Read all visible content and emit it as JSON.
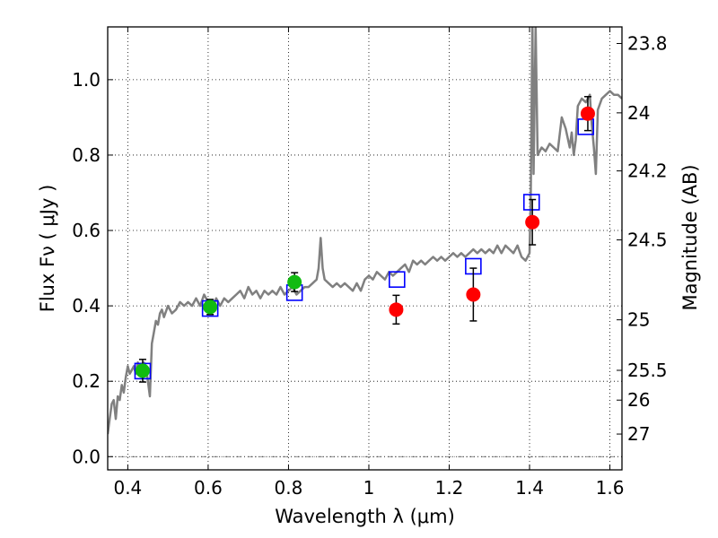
{
  "chart_data": {
    "type": "scatter",
    "xlabel": "Wavelength  λ (μm)",
    "ylabel_left": "Flux  Fν  ( μJy )",
    "ylabel_right": "Magnitude (AB)",
    "xlim": [
      0.35,
      1.63
    ],
    "ylim": [
      -0.035,
      1.14
    ],
    "grid": true,
    "x_ticks": [
      0.4,
      0.6,
      0.8,
      1.0,
      1.2,
      1.4,
      1.6
    ],
    "x_tick_labels": [
      "0.4",
      "0.6",
      "0.8",
      "1",
      "1.2",
      "1.4",
      "1.6"
    ],
    "y_ticks": [
      0.0,
      0.2,
      0.4,
      0.6,
      0.8,
      1.0
    ],
    "y_tick_labels": [
      "0.0",
      "0.2",
      "0.4",
      "0.6",
      "0.8",
      "1.0"
    ],
    "right_ticks": [
      {
        "flux": 1.096,
        "label": "23.8"
      },
      {
        "flux": 0.912,
        "label": "24"
      },
      {
        "flux": 0.758,
        "label": "24.2"
      },
      {
        "flux": 0.575,
        "label": "24.5"
      },
      {
        "flux": 0.363,
        "label": "25"
      },
      {
        "flux": 0.229,
        "label": "25.5"
      },
      {
        "flux": 0.15,
        "label": "26"
      },
      {
        "flux": 0.06,
        "label": "27"
      }
    ],
    "colors": {
      "model": "#808080",
      "green": "#11bb11",
      "red": "#ff0000",
      "box": "#0000ff",
      "errorbar": "#000000"
    },
    "series": [
      {
        "kind": "model_spectrum",
        "points": [
          [
            0.35,
            0.06
          ],
          [
            0.355,
            0.1
          ],
          [
            0.36,
            0.14
          ],
          [
            0.365,
            0.15
          ],
          [
            0.37,
            0.1
          ],
          [
            0.375,
            0.16
          ],
          [
            0.38,
            0.15
          ],
          [
            0.385,
            0.19
          ],
          [
            0.39,
            0.17
          ],
          [
            0.395,
            0.21
          ],
          [
            0.4,
            0.24
          ],
          [
            0.405,
            0.22
          ],
          [
            0.41,
            0.23
          ],
          [
            0.415,
            0.24
          ],
          [
            0.42,
            0.22
          ],
          [
            0.425,
            0.25
          ],
          [
            0.43,
            0.23
          ],
          [
            0.435,
            0.22
          ],
          [
            0.44,
            0.25
          ],
          [
            0.445,
            0.24
          ],
          [
            0.45,
            0.2
          ],
          [
            0.455,
            0.16
          ],
          [
            0.46,
            0.3
          ],
          [
            0.465,
            0.33
          ],
          [
            0.47,
            0.36
          ],
          [
            0.475,
            0.35
          ],
          [
            0.48,
            0.38
          ],
          [
            0.485,
            0.39
          ],
          [
            0.49,
            0.37
          ],
          [
            0.5,
            0.4
          ],
          [
            0.51,
            0.38
          ],
          [
            0.52,
            0.39
          ],
          [
            0.53,
            0.41
          ],
          [
            0.54,
            0.4
          ],
          [
            0.55,
            0.41
          ],
          [
            0.56,
            0.4
          ],
          [
            0.57,
            0.42
          ],
          [
            0.58,
            0.4
          ],
          [
            0.59,
            0.43
          ],
          [
            0.6,
            0.41
          ],
          [
            0.61,
            0.39
          ],
          [
            0.62,
            0.42
          ],
          [
            0.63,
            0.4
          ],
          [
            0.64,
            0.42
          ],
          [
            0.65,
            0.41
          ],
          [
            0.66,
            0.42
          ],
          [
            0.67,
            0.43
          ],
          [
            0.68,
            0.44
          ],
          [
            0.69,
            0.42
          ],
          [
            0.7,
            0.45
          ],
          [
            0.71,
            0.43
          ],
          [
            0.72,
            0.44
          ],
          [
            0.73,
            0.42
          ],
          [
            0.74,
            0.44
          ],
          [
            0.75,
            0.43
          ],
          [
            0.76,
            0.44
          ],
          [
            0.77,
            0.43
          ],
          [
            0.78,
            0.45
          ],
          [
            0.79,
            0.43
          ],
          [
            0.8,
            0.44
          ],
          [
            0.81,
            0.45
          ],
          [
            0.82,
            0.43
          ],
          [
            0.83,
            0.44
          ],
          [
            0.84,
            0.45
          ],
          [
            0.85,
            0.45
          ],
          [
            0.86,
            0.46
          ],
          [
            0.87,
            0.47
          ],
          [
            0.875,
            0.5
          ],
          [
            0.88,
            0.58
          ],
          [
            0.885,
            0.5
          ],
          [
            0.89,
            0.47
          ],
          [
            0.9,
            0.46
          ],
          [
            0.91,
            0.45
          ],
          [
            0.92,
            0.46
          ],
          [
            0.93,
            0.45
          ],
          [
            0.94,
            0.46
          ],
          [
            0.95,
            0.45
          ],
          [
            0.96,
            0.44
          ],
          [
            0.97,
            0.46
          ],
          [
            0.98,
            0.44
          ],
          [
            0.99,
            0.47
          ],
          [
            1.0,
            0.48
          ],
          [
            1.01,
            0.47
          ],
          [
            1.02,
            0.49
          ],
          [
            1.03,
            0.48
          ],
          [
            1.04,
            0.47
          ],
          [
            1.05,
            0.49
          ],
          [
            1.06,
            0.48
          ],
          [
            1.07,
            0.49
          ],
          [
            1.08,
            0.5
          ],
          [
            1.09,
            0.51
          ],
          [
            1.1,
            0.49
          ],
          [
            1.11,
            0.52
          ],
          [
            1.12,
            0.51
          ],
          [
            1.13,
            0.52
          ],
          [
            1.14,
            0.51
          ],
          [
            1.15,
            0.52
          ],
          [
            1.16,
            0.53
          ],
          [
            1.17,
            0.52
          ],
          [
            1.18,
            0.53
          ],
          [
            1.19,
            0.52
          ],
          [
            1.2,
            0.53
          ],
          [
            1.21,
            0.54
          ],
          [
            1.22,
            0.53
          ],
          [
            1.23,
            0.54
          ],
          [
            1.24,
            0.53
          ],
          [
            1.25,
            0.54
          ],
          [
            1.26,
            0.55
          ],
          [
            1.27,
            0.54
          ],
          [
            1.28,
            0.55
          ],
          [
            1.29,
            0.54
          ],
          [
            1.3,
            0.55
          ],
          [
            1.31,
            0.54
          ],
          [
            1.32,
            0.56
          ],
          [
            1.33,
            0.54
          ],
          [
            1.34,
            0.56
          ],
          [
            1.35,
            0.55
          ],
          [
            1.36,
            0.54
          ],
          [
            1.37,
            0.56
          ],
          [
            1.38,
            0.53
          ],
          [
            1.39,
            0.52
          ],
          [
            1.395,
            0.53
          ],
          [
            1.4,
            0.54
          ],
          [
            1.403,
            0.7
          ],
          [
            1.407,
            1.16
          ],
          [
            1.41,
            0.75
          ],
          [
            1.415,
            1.14
          ],
          [
            1.42,
            0.8
          ],
          [
            1.43,
            0.82
          ],
          [
            1.44,
            0.81
          ],
          [
            1.45,
            0.83
          ],
          [
            1.46,
            0.82
          ],
          [
            1.47,
            0.81
          ],
          [
            1.48,
            0.9
          ],
          [
            1.49,
            0.87
          ],
          [
            1.5,
            0.82
          ],
          [
            1.505,
            0.86
          ],
          [
            1.51,
            0.8
          ],
          [
            1.515,
            0.84
          ],
          [
            1.52,
            0.93
          ],
          [
            1.53,
            0.95
          ],
          [
            1.54,
            0.94
          ],
          [
            1.55,
            0.96
          ],
          [
            1.555,
            0.88
          ],
          [
            1.56,
            0.82
          ],
          [
            1.565,
            0.75
          ],
          [
            1.57,
            0.92
          ],
          [
            1.58,
            0.95
          ],
          [
            1.59,
            0.96
          ],
          [
            1.6,
            0.97
          ],
          [
            1.61,
            0.96
          ],
          [
            1.62,
            0.96
          ],
          [
            1.63,
            0.95
          ]
        ]
      },
      {
        "kind": "box_markers",
        "points": [
          [
            0.437,
            0.227
          ],
          [
            0.605,
            0.393
          ],
          [
            0.815,
            0.435
          ],
          [
            1.07,
            0.47
          ],
          [
            1.26,
            0.505
          ],
          [
            1.405,
            0.675
          ],
          [
            1.54,
            0.875
          ]
        ]
      },
      {
        "kind": "green_points",
        "points": [
          {
            "x": 0.437,
            "y": 0.228,
            "err": 0.03
          },
          {
            "x": 0.605,
            "y": 0.397,
            "err": 0.02
          },
          {
            "x": 0.815,
            "y": 0.463,
            "err": 0.025
          }
        ]
      },
      {
        "kind": "red_points",
        "points": [
          {
            "x": 1.068,
            "y": 0.39,
            "err": 0.038
          },
          {
            "x": 1.26,
            "y": 0.43,
            "err": 0.07
          },
          {
            "x": 1.407,
            "y": 0.622,
            "err": 0.06
          },
          {
            "x": 1.545,
            "y": 0.91,
            "err": 0.045
          }
        ]
      }
    ]
  }
}
